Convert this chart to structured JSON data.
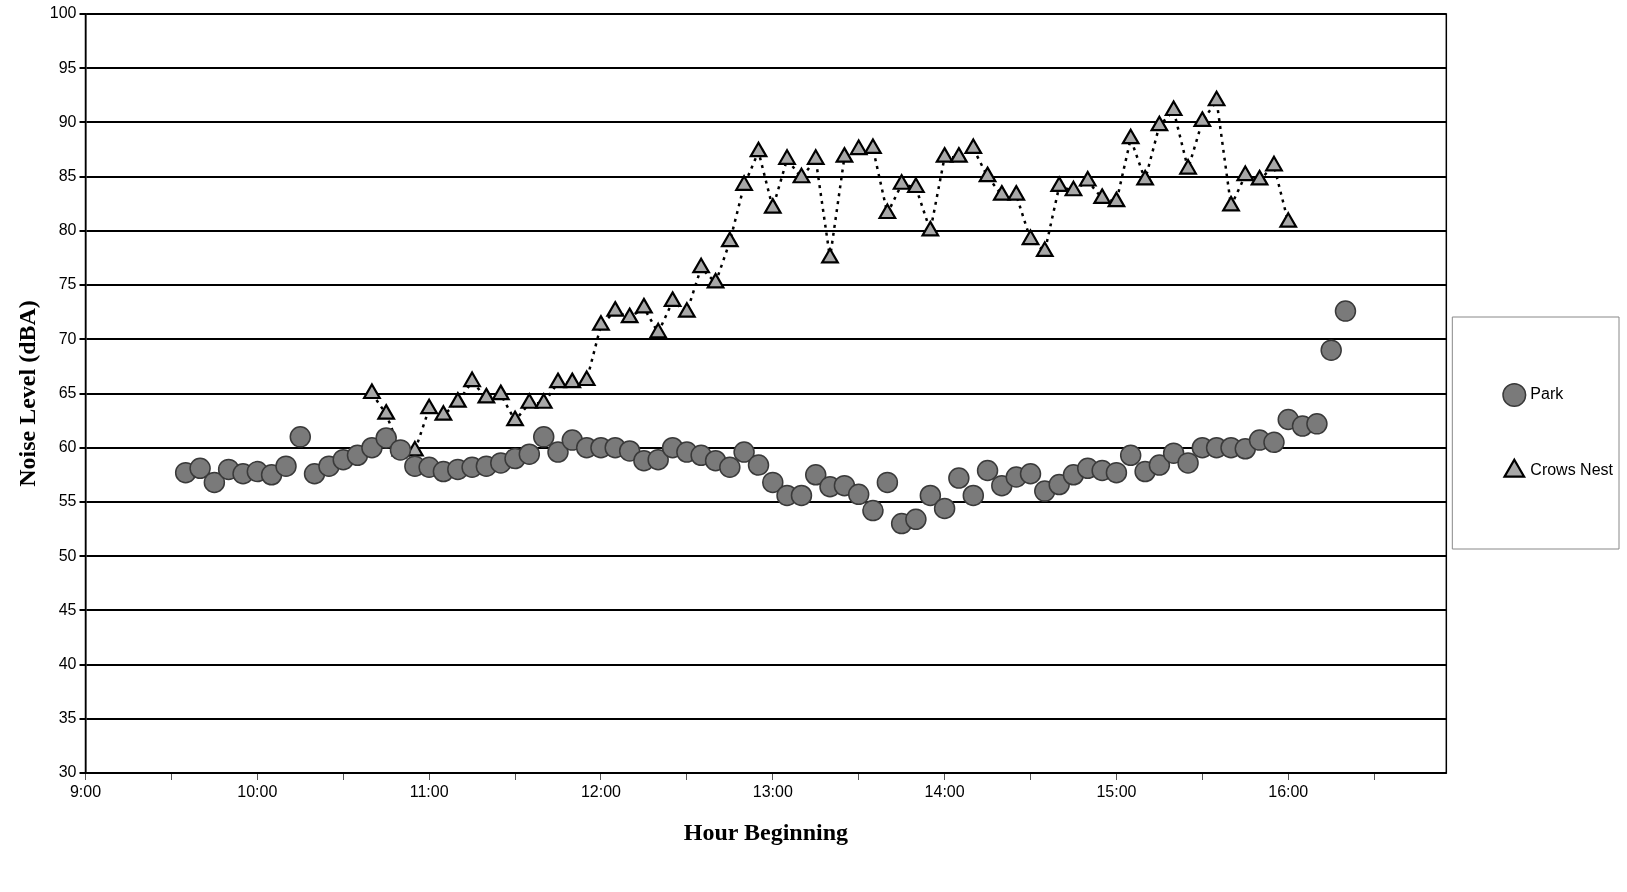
{
  "chart_data": {
    "type": "scatter",
    "xlabel": "Hour Beginning",
    "ylabel": "Noise Level (dBA)",
    "xlim": [
      9,
      16.92
    ],
    "xticks": [
      {
        "value": 9,
        "label": "9:00"
      },
      {
        "value": 9.5,
        "label": null
      },
      {
        "value": 10,
        "label": "10:00"
      },
      {
        "value": 10.5,
        "label": null
      },
      {
        "value": 11,
        "label": "11:00"
      },
      {
        "value": 11.5,
        "label": null
      },
      {
        "value": 12,
        "label": "12:00"
      },
      {
        "value": 12.5,
        "label": null
      },
      {
        "value": 13,
        "label": "13:00"
      },
      {
        "value": 13.5,
        "label": null
      },
      {
        "value": 14,
        "label": "14:00"
      },
      {
        "value": 14.5,
        "label": null
      },
      {
        "value": 15,
        "label": "15:00"
      },
      {
        "value": 15.5,
        "label": null
      },
      {
        "value": 16,
        "label": "16:00"
      },
      {
        "value": 16.5,
        "label": null
      }
    ],
    "ylim": [
      30,
      100
    ],
    "yticks": [
      30,
      35,
      40,
      45,
      50,
      55,
      60,
      65,
      70,
      75,
      80,
      85,
      90,
      95,
      100
    ],
    "grid": "y",
    "legend": "right",
    "series": [
      {
        "name": "Park",
        "marker": "circle",
        "color": "#7a7a7a",
        "x": [
          9.583,
          9.667,
          9.75,
          9.833,
          9.917,
          10,
          10.083,
          10.167,
          10.25,
          10.333,
          10.417,
          10.5,
          10.583,
          10.667,
          10.75,
          10.833,
          10.917,
          11,
          11.083,
          11.167,
          11.25,
          11.333,
          11.417,
          11.5,
          11.583,
          11.667,
          11.75,
          11.833,
          11.917,
          12,
          12.083,
          12.167,
          12.25,
          12.333,
          12.417,
          12.5,
          12.583,
          12.667,
          12.75,
          12.833,
          12.917,
          13,
          13.083,
          13.167,
          13.25,
          13.333,
          13.417,
          13.5,
          13.583,
          13.667,
          13.75,
          13.833,
          13.917,
          14,
          14.083,
          14.167,
          14.25,
          14.333,
          14.417,
          14.5,
          14.583,
          14.667,
          14.75,
          14.833,
          14.917,
          15,
          15.083,
          15.167,
          15.25,
          15.333,
          15.417,
          15.5,
          15.583,
          15.667,
          15.75,
          15.833,
          15.917,
          16,
          16.083,
          16.167,
          16.25,
          16.333
        ],
        "values": [
          57.7,
          58.1,
          56.8,
          58.0,
          57.6,
          57.8,
          57.5,
          58.3,
          61.0,
          57.6,
          58.3,
          58.9,
          59.3,
          60.0,
          60.9,
          59.8,
          58.3,
          58.2,
          57.8,
          58.0,
          58.2,
          58.3,
          58.6,
          59.0,
          59.4,
          61.0,
          59.6,
          60.7,
          60.0,
          60.0,
          60.0,
          59.7,
          58.8,
          58.9,
          60.0,
          59.6,
          59.3,
          58.8,
          58.2,
          59.6,
          58.4,
          56.8,
          55.6,
          55.6,
          57.5,
          56.4,
          56.5,
          55.7,
          54.2,
          56.8,
          53.0,
          53.4,
          55.6,
          54.4,
          57.2,
          55.6,
          57.9,
          56.5,
          57.3,
          57.6,
          56.0,
          56.6,
          57.5,
          58.1,
          57.9,
          57.7,
          59.3,
          57.8,
          58.4,
          59.5,
          58.6,
          60.0,
          60.0,
          60.0,
          59.9,
          60.7,
          60.5,
          62.6,
          62.0,
          62.2,
          69.0,
          72.6
        ]
      },
      {
        "name": "Crows Nest",
        "type": "line",
        "marker": "triangle",
        "line_style": "dotted",
        "color": "#000000",
        "x": [
          10.667,
          10.75,
          10.833,
          10.917,
          11,
          11.083,
          11.167,
          11.25,
          11.333,
          11.417,
          11.5,
          11.583,
          11.667,
          11.75,
          11.833,
          11.917,
          12,
          12.083,
          12.167,
          12.25,
          12.333,
          12.417,
          12.5,
          12.583,
          12.667,
          12.75,
          12.833,
          12.917,
          13,
          13.083,
          13.167,
          13.25,
          13.333,
          13.417,
          13.5,
          13.583,
          13.667,
          13.75,
          13.833,
          13.917,
          14,
          14.083,
          14.167,
          14.25,
          14.333,
          14.417,
          14.5,
          14.583,
          14.667,
          14.75,
          14.833,
          14.917,
          15,
          15.083,
          15.167,
          15.25,
          15.333,
          15.417,
          15.5,
          15.583,
          15.667,
          15.75,
          15.833,
          15.917,
          16
        ],
        "values": [
          65.0,
          63.1,
          59.7,
          59.7,
          63.6,
          63.0,
          64.2,
          66.1,
          64.6,
          64.9,
          62.5,
          64.1,
          64.1,
          66.0,
          66.0,
          66.2,
          71.3,
          72.6,
          72.0,
          72.9,
          70.6,
          73.5,
          72.5,
          76.6,
          75.2,
          79.0,
          84.2,
          87.3,
          82.1,
          86.6,
          84.9,
          86.6,
          77.5,
          86.8,
          87.5,
          87.6,
          81.6,
          84.3,
          84.0,
          80.0,
          86.8,
          86.8,
          87.6,
          85.0,
          83.3,
          83.3,
          79.2,
          78.1,
          84.1,
          83.7,
          84.6,
          83.0,
          82.7,
          88.5,
          84.7,
          89.7,
          91.1,
          85.7,
          90.1,
          92.0,
          82.3,
          85.1,
          84.7,
          86.0,
          80.8
        ]
      }
    ]
  }
}
